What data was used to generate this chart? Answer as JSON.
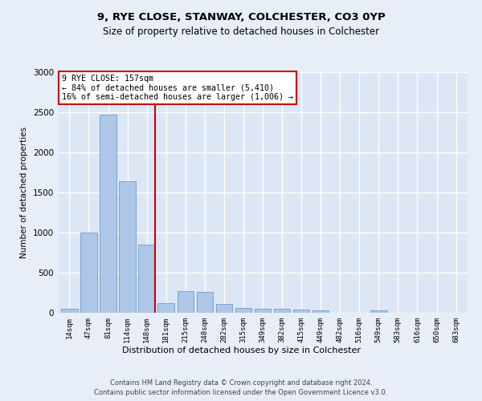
{
  "title1": "9, RYE CLOSE, STANWAY, COLCHESTER, CO3 0YP",
  "title2": "Size of property relative to detached houses in Colchester",
  "xlabel": "Distribution of detached houses by size in Colchester",
  "ylabel": "Number of detached properties",
  "categories": [
    "14sqm",
    "47sqm",
    "81sqm",
    "114sqm",
    "148sqm",
    "181sqm",
    "215sqm",
    "248sqm",
    "282sqm",
    "315sqm",
    "349sqm",
    "382sqm",
    "415sqm",
    "449sqm",
    "482sqm",
    "516sqm",
    "549sqm",
    "583sqm",
    "616sqm",
    "650sqm",
    "683sqm"
  ],
  "values": [
    50,
    1000,
    2470,
    1640,
    850,
    120,
    270,
    265,
    110,
    60,
    50,
    50,
    45,
    35,
    0,
    0,
    30,
    0,
    0,
    0,
    0
  ],
  "bar_color": "#aec6e8",
  "bar_edge_color": "#6a9fc8",
  "vline_color": "#cc0000",
  "vline_pos": 4,
  "annotation_text": "9 RYE CLOSE: 157sqm\n← 84% of detached houses are smaller (5,410)\n16% of semi-detached houses are larger (1,006) →",
  "annotation_box_facecolor": "#ffffff",
  "annotation_box_edgecolor": "#cc0000",
  "ylim": [
    0,
    3000
  ],
  "yticks": [
    0,
    500,
    1000,
    1500,
    2000,
    2500,
    3000
  ],
  "fig_facecolor": "#e8eef7",
  "ax_facecolor": "#dde6f5",
  "grid_color": "#ffffff",
  "footer_line1": "Contains HM Land Registry data © Crown copyright and database right 2024.",
  "footer_line2": "Contains public sector information licensed under the Open Government Licence v3.0."
}
